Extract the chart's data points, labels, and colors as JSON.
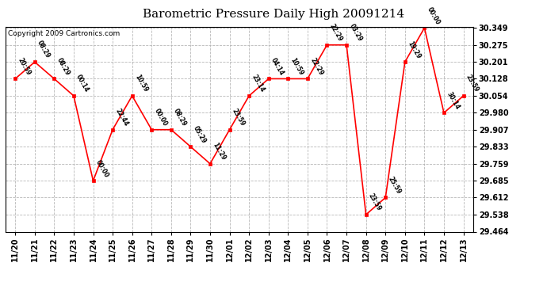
{
  "title": "Barometric Pressure Daily High 20091214",
  "copyright": "Copyright 2009 Cartronics.com",
  "x_labels": [
    "11/20",
    "11/21",
    "11/22",
    "11/23",
    "11/24",
    "11/25",
    "11/26",
    "11/27",
    "11/28",
    "11/29",
    "11/30",
    "12/01",
    "12/02",
    "12/03",
    "12/04",
    "12/05",
    "12/06",
    "12/07",
    "12/08",
    "12/09",
    "12/10",
    "12/11",
    "12/12",
    "12/13"
  ],
  "y_values": [
    30.128,
    30.201,
    30.128,
    30.054,
    29.685,
    29.907,
    30.054,
    29.907,
    29.907,
    29.833,
    29.759,
    29.907,
    30.054,
    30.128,
    30.128,
    30.128,
    30.275,
    30.275,
    29.538,
    29.612,
    30.201,
    30.349,
    29.98,
    30.054
  ],
  "time_labels": [
    "20:59",
    "08:29",
    "08:29",
    "00:14",
    "00:00",
    "22:44",
    "10:59",
    "00:00",
    "08:29",
    "05:29",
    "11:29",
    "23:59",
    "23:14",
    "04:14",
    "10:59",
    "22:29",
    "22:29",
    "03:29",
    "23:59",
    "25:59",
    "19:29",
    "00:00",
    "30:14",
    "23:59"
  ],
  "y_min": 29.464,
  "y_max": 30.349,
  "y_ticks": [
    29.464,
    29.538,
    29.612,
    29.685,
    29.759,
    29.833,
    29.907,
    29.98,
    30.054,
    30.128,
    30.201,
    30.275,
    30.349
  ],
  "line_color": "red",
  "marker_color": "red",
  "bg_color": "#ffffff",
  "grid_color": "#b0b0b0",
  "title_fontsize": 11,
  "copyright_fontsize": 6.5,
  "tick_fontsize": 7
}
